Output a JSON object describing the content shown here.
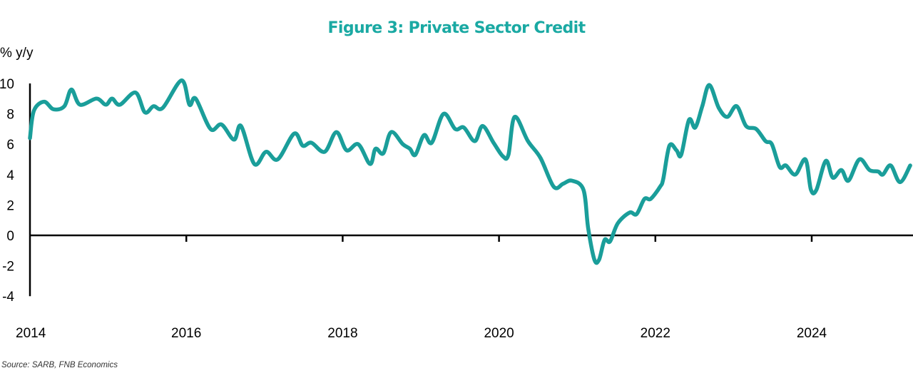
{
  "chart_data": {
    "type": "line",
    "title": "Figure 3: Private Sector Credit",
    "ylabel": "% y/y",
    "xlabel": "",
    "source": "Source: SARB, FNB Economics",
    "xlim": [
      2014.0,
      2025.3
    ],
    "ylim": [
      -4,
      10
    ],
    "yticks": [
      10,
      8,
      6,
      4,
      2,
      0,
      -2,
      -4
    ],
    "ytick_labels": [
      "10",
      "8",
      "6",
      "4",
      "2",
      "0",
      "-2",
      "-4"
    ],
    "xticks": [
      2014,
      2016,
      2018,
      2020,
      2022,
      2024
    ],
    "xtick_labels": [
      "2014",
      "2016",
      "2018",
      "2020",
      "2022",
      "2024"
    ],
    "grid": false,
    "legend": "none",
    "colors": {
      "line": "#1a9e9a",
      "title": "#1aa9a3",
      "axis": "#000000"
    },
    "series": [
      {
        "name": "Private Sector Credit",
        "x": [
          2014.0,
          2014.05,
          2014.18,
          2014.3,
          2014.44,
          2014.53,
          2014.64,
          2014.85,
          2014.97,
          2015.05,
          2015.15,
          2015.35,
          2015.47,
          2015.58,
          2015.7,
          2015.94,
          2016.04,
          2016.12,
          2016.31,
          2016.45,
          2016.61,
          2016.7,
          2016.87,
          2017.02,
          2017.17,
          2017.38,
          2017.49,
          2017.6,
          2017.77,
          2017.92,
          2018.05,
          2018.2,
          2018.35,
          2018.42,
          2018.52,
          2018.62,
          2018.77,
          2018.86,
          2018.93,
          2019.04,
          2019.14,
          2019.29,
          2019.44,
          2019.55,
          2019.69,
          2019.79,
          2019.93,
          2020.05,
          2020.12,
          2020.2,
          2020.37,
          2020.53,
          2020.7,
          2020.82,
          2020.93,
          2021.08,
          2021.14,
          2021.22,
          2021.28,
          2021.35,
          2021.42,
          2021.52,
          2021.67,
          2021.76,
          2021.86,
          2021.94,
          2022.06,
          2022.1,
          2022.18,
          2022.27,
          2022.33,
          2022.43,
          2022.51,
          2022.6,
          2022.69,
          2022.81,
          2022.92,
          2023.04,
          2023.16,
          2023.29,
          2023.41,
          2023.49,
          2023.59,
          2023.67,
          2023.79,
          2023.92,
          2023.99,
          2024.06,
          2024.18,
          2024.27,
          2024.38,
          2024.47,
          2024.61,
          2024.74,
          2024.85,
          2024.91,
          2025.01,
          2025.13,
          2025.26
        ],
        "values": [
          6.4,
          8.2,
          8.8,
          8.3,
          8.5,
          9.6,
          8.6,
          9.0,
          8.6,
          9.0,
          8.6,
          9.4,
          8.1,
          8.5,
          8.4,
          10.2,
          8.6,
          9.0,
          7.0,
          7.3,
          6.3,
          7.2,
          4.7,
          5.5,
          5.0,
          6.7,
          5.9,
          6.1,
          5.5,
          6.8,
          5.6,
          6.0,
          4.7,
          5.7,
          5.4,
          6.8,
          6.0,
          5.7,
          5.3,
          6.6,
          6.1,
          8.0,
          7.0,
          7.1,
          6.2,
          7.2,
          6.1,
          5.2,
          5.3,
          7.8,
          6.2,
          5.1,
          3.2,
          3.4,
          3.6,
          3.0,
          0.5,
          -1.6,
          -1.6,
          -0.3,
          -0.4,
          0.8,
          1.5,
          1.4,
          2.4,
          2.4,
          3.2,
          3.7,
          5.9,
          5.6,
          5.3,
          7.6,
          7.1,
          8.5,
          9.9,
          8.4,
          7.8,
          8.5,
          7.2,
          7.0,
          6.2,
          6.0,
          4.5,
          4.6,
          4.0,
          5.0,
          3.0,
          3.0,
          4.9,
          3.8,
          4.3,
          3.6,
          5.0,
          4.3,
          4.2,
          4.0,
          4.6,
          3.5,
          4.6
        ]
      }
    ]
  }
}
